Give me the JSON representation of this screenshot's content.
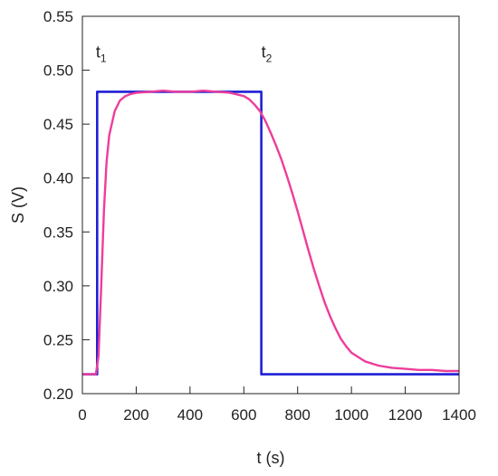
{
  "chart_data": {
    "type": "line",
    "title": "",
    "xlabel": "t (s)",
    "ylabel": "S (V)",
    "xlim": [
      0,
      1400
    ],
    "ylim": [
      0.2,
      0.55
    ],
    "x_ticks": [
      "0",
      "200",
      "400",
      "600",
      "800",
      "1000",
      "1200",
      "1400"
    ],
    "y_ticks": [
      "0.20",
      "0.25",
      "0.30",
      "0.35",
      "0.40",
      "0.45",
      "0.50",
      "0.55"
    ],
    "x_tick_values": [
      0,
      200,
      400,
      600,
      800,
      1000,
      1200,
      1400
    ],
    "y_tick_values": [
      0.2,
      0.25,
      0.3,
      0.35,
      0.4,
      0.45,
      0.5,
      0.55
    ],
    "grid": false,
    "annotations": [
      {
        "base": "t",
        "sub": "1",
        "x": 50,
        "y": 0.512
      },
      {
        "base": "t",
        "sub": "2",
        "x": 665,
        "y": 0.512
      }
    ],
    "series": [
      {
        "color": "#1f1fd6",
        "x": [
          0,
          55,
          55,
          665,
          665,
          1400
        ],
        "y": [
          0.218,
          0.218,
          0.48,
          0.48,
          0.218,
          0.218
        ]
      },
      {
        "color": "#ee3d9a",
        "x": [
          0,
          50,
          60,
          70,
          80,
          90,
          100,
          120,
          140,
          160,
          180,
          200,
          250,
          300,
          350,
          400,
          450,
          500,
          550,
          600,
          620,
          640,
          660,
          680,
          700,
          720,
          740,
          760,
          780,
          800,
          820,
          840,
          860,
          880,
          900,
          920,
          940,
          960,
          980,
          1000,
          1050,
          1100,
          1150,
          1200,
          1250,
          1300,
          1350,
          1400
        ],
        "y": [
          0.218,
          0.218,
          0.235,
          0.3,
          0.37,
          0.415,
          0.44,
          0.462,
          0.472,
          0.476,
          0.478,
          0.479,
          0.48,
          0.481,
          0.48,
          0.48,
          0.481,
          0.48,
          0.479,
          0.476,
          0.473,
          0.468,
          0.462,
          0.453,
          0.442,
          0.43,
          0.417,
          0.402,
          0.386,
          0.369,
          0.351,
          0.333,
          0.316,
          0.3,
          0.285,
          0.272,
          0.261,
          0.251,
          0.244,
          0.238,
          0.23,
          0.226,
          0.224,
          0.223,
          0.222,
          0.222,
          0.221,
          0.221
        ]
      }
    ]
  }
}
